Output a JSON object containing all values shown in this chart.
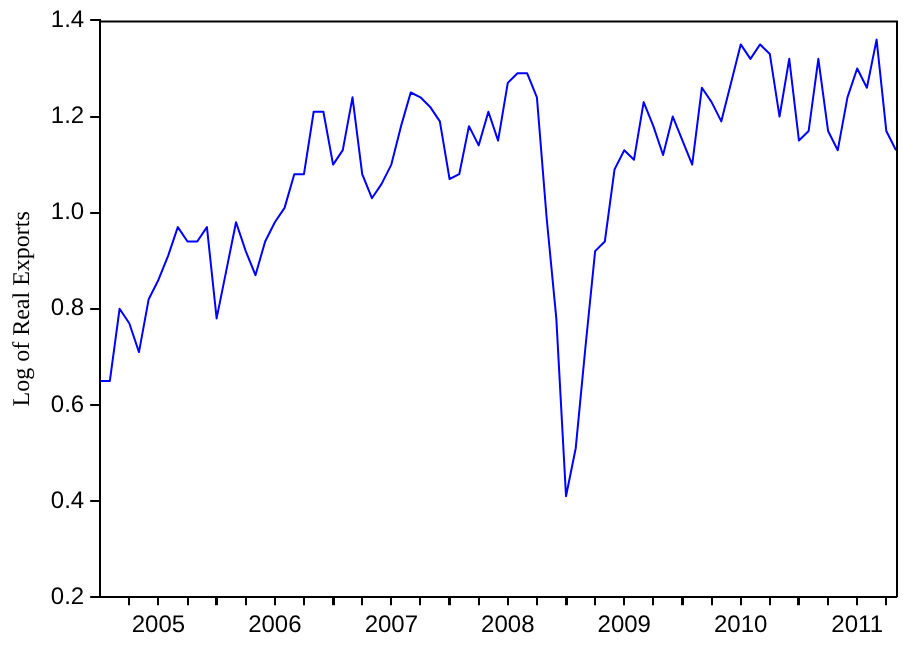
{
  "chart_data": {
    "type": "line",
    "ylabel": "Log of Real Exports",
    "x": [
      "2005-01",
      "2005-02",
      "2005-03",
      "2005-04",
      "2005-05",
      "2005-06",
      "2005-07",
      "2005-08",
      "2005-09",
      "2005-10",
      "2005-11",
      "2005-12",
      "2006-01",
      "2006-02",
      "2006-03",
      "2006-04",
      "2006-05",
      "2006-06",
      "2006-07",
      "2006-08",
      "2006-09",
      "2006-10",
      "2006-11",
      "2006-12",
      "2007-01",
      "2007-02",
      "2007-03",
      "2007-04",
      "2007-05",
      "2007-06",
      "2007-07",
      "2007-08",
      "2007-09",
      "2007-10",
      "2007-11",
      "2007-12",
      "2008-01",
      "2008-02",
      "2008-03",
      "2008-04",
      "2008-05",
      "2008-06",
      "2008-07",
      "2008-08",
      "2008-09",
      "2008-10",
      "2008-11",
      "2008-12",
      "2009-01",
      "2009-02",
      "2009-03",
      "2009-04",
      "2009-05",
      "2009-06",
      "2009-07",
      "2009-08",
      "2009-09",
      "2009-10",
      "2009-11",
      "2009-12",
      "2010-01",
      "2010-02",
      "2010-03",
      "2010-04",
      "2010-05",
      "2010-06",
      "2010-07",
      "2010-08",
      "2010-09",
      "2010-10",
      "2010-11",
      "2010-12",
      "2011-01",
      "2011-02",
      "2011-03",
      "2011-04",
      "2011-05",
      "2011-06",
      "2011-07",
      "2011-08",
      "2011-09",
      "2011-10",
      "2011-11"
    ],
    "series": [
      {
        "color": "#0000ff",
        "values": [
          0.65,
          0.65,
          0.8,
          0.77,
          0.71,
          0.82,
          0.86,
          0.91,
          0.97,
          0.94,
          0.94,
          0.97,
          0.78,
          0.88,
          0.98,
          0.92,
          0.87,
          0.94,
          0.98,
          1.01,
          1.08,
          1.08,
          1.21,
          1.21,
          1.1,
          1.13,
          1.24,
          1.08,
          1.03,
          1.06,
          1.1,
          1.18,
          1.25,
          1.24,
          1.22,
          1.19,
          1.07,
          1.08,
          1.18,
          1.14,
          1.21,
          1.15,
          1.27,
          1.29,
          1.29,
          1.24,
          0.99,
          0.78,
          0.41,
          0.51,
          0.72,
          0.92,
          0.94,
          1.09,
          1.13,
          1.11,
          1.23,
          1.18,
          1.12,
          1.2,
          1.15,
          1.1,
          1.26,
          1.23,
          1.19,
          1.27,
          1.35,
          1.32,
          1.35,
          1.33,
          1.2,
          1.32,
          1.15,
          1.17,
          1.32,
          1.17,
          1.13,
          1.24,
          1.3,
          1.26,
          1.36,
          1.17,
          1.13
        ]
      }
    ],
    "xlim": [
      "2005-01",
      "2011-11"
    ],
    "xticks": [
      {
        "value": "2005-04",
        "label": null
      },
      {
        "value": "2005-07",
        "label": "2005"
      },
      {
        "value": "2005-10",
        "label": null
      },
      {
        "value": "2006-01",
        "label": null
      },
      {
        "value": "2006-04",
        "label": null
      },
      {
        "value": "2006-07",
        "label": "2006"
      },
      {
        "value": "2006-10",
        "label": null
      },
      {
        "value": "2007-01",
        "label": null
      },
      {
        "value": "2007-04",
        "label": null
      },
      {
        "value": "2007-07",
        "label": "2007"
      },
      {
        "value": "2007-10",
        "label": null
      },
      {
        "value": "2008-01",
        "label": null
      },
      {
        "value": "2008-04",
        "label": null
      },
      {
        "value": "2008-07",
        "label": "2008"
      },
      {
        "value": "2008-10",
        "label": null
      },
      {
        "value": "2009-01",
        "label": null
      },
      {
        "value": "2009-04",
        "label": null
      },
      {
        "value": "2009-07",
        "label": "2009"
      },
      {
        "value": "2009-10",
        "label": null
      },
      {
        "value": "2010-01",
        "label": null
      },
      {
        "value": "2010-04",
        "label": null
      },
      {
        "value": "2010-07",
        "label": "2010"
      },
      {
        "value": "2010-10",
        "label": null
      },
      {
        "value": "2011-01",
        "label": null
      },
      {
        "value": "2011-04",
        "label": null
      },
      {
        "value": "2011-07",
        "label": "2011"
      },
      {
        "value": "2011-10",
        "label": null
      }
    ],
    "ylim": [
      0.2,
      1.4
    ],
    "yticks": [
      {
        "value": 0.2,
        "label": "0.2"
      },
      {
        "value": 0.4,
        "label": "0.4"
      },
      {
        "value": 0.6,
        "label": "0.6"
      },
      {
        "value": 0.8,
        "label": "0.8"
      },
      {
        "value": 1.0,
        "label": "1.0"
      },
      {
        "value": 1.2,
        "label": "1.2"
      },
      {
        "value": 1.4,
        "label": "1.4"
      }
    ],
    "grid": false,
    "legend": false,
    "marker": "none",
    "line_style": "solid"
  }
}
